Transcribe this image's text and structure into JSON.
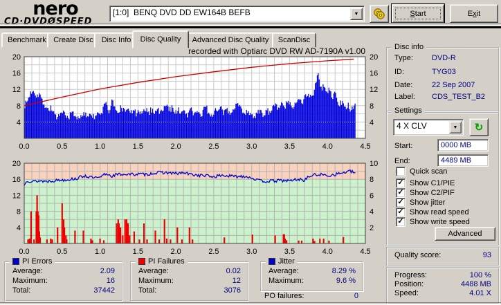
{
  "app": {
    "logo_top": "nero",
    "logo_bottom_left": "CD·DVD",
    "logo_disc": "Ø",
    "logo_bottom_right": "SPEED"
  },
  "toolbar": {
    "drive_select": "[1:0]  BENQ DVD DD EW164B BEFB",
    "eject_icon": "discs-icon",
    "start": {
      "label": "Start",
      "accel": 0
    },
    "exit": {
      "label": "Exit",
      "accel": 1
    }
  },
  "tabs": [
    {
      "label": "Benchmark"
    },
    {
      "label": "Create Disc"
    },
    {
      "label": "Disc Info"
    },
    {
      "label": "Disc Quality",
      "active": true
    },
    {
      "label": "Advanced Disc Quality"
    },
    {
      "label": "ScanDisc"
    }
  ],
  "chart_data": [
    {
      "type": "bar",
      "name": "pi-errors-scan",
      "title": "recorded with Optiarc DVD RW AD-7190A  v1.00",
      "x_range": [
        0,
        4.5
      ],
      "x_ticks": [
        0.0,
        0.5,
        1.0,
        1.5,
        2.0,
        2.5,
        3.0,
        3.5,
        4.0,
        4.5
      ],
      "y_left_ticks": [
        4,
        8,
        12,
        16,
        20
      ],
      "y_right_ticks": [
        4,
        8,
        12,
        16,
        20
      ],
      "ylim": [
        0,
        20
      ],
      "grid": {
        "x_step": 0.1,
        "y_step": 2,
        "color": "#c9c9c9"
      },
      "bar_color": "#0000dd",
      "pie_base_level": 3.5,
      "pie_end_x": 4.37,
      "pie_samples_span": 4.35,
      "pie_samples": [
        8,
        9,
        11,
        12,
        10.5,
        11,
        9,
        8,
        7,
        7.5,
        6,
        5,
        5.5,
        6.5,
        5,
        5.5,
        6.5,
        5,
        5.5,
        5,
        6,
        5.5,
        6.5,
        5,
        6,
        5.5,
        7,
        9.5,
        6,
        9.5,
        7,
        6,
        8,
        6.5,
        7.5,
        6,
        7,
        6,
        6.5,
        5.5,
        7.5,
        6,
        7,
        6.5,
        7.5,
        6,
        7.5,
        8,
        7,
        7.5,
        6.5,
        7,
        6,
        6.5,
        5.5,
        8,
        6,
        6.5,
        5.5,
        6,
        8.5,
        6,
        5.5,
        7,
        6.5,
        7.5,
        6,
        7,
        6,
        7.5,
        8.5,
        8,
        7,
        6.5,
        6,
        6.5,
        5.5,
        6,
        6.5,
        5.5,
        7,
        6.5,
        7.5,
        8,
        7,
        8.5,
        7.5,
        9,
        8,
        7,
        9.5,
        10,
        9,
        10.5,
        11,
        10,
        12,
        16,
        12,
        13,
        11,
        12,
        10,
        11.5,
        8,
        9,
        7,
        8.5,
        6.5,
        8
      ],
      "write_speed_line": {
        "color": "#cc0000",
        "points": [
          [
            0,
            8
          ],
          [
            0.5,
            10.1
          ],
          [
            1.0,
            12.1
          ],
          [
            1.5,
            13.7
          ],
          [
            2.0,
            15.1
          ],
          [
            2.5,
            16.3
          ],
          [
            3.0,
            17.4
          ],
          [
            3.5,
            18.3
          ],
          [
            4.0,
            19.0
          ],
          [
            4.35,
            19.4
          ]
        ]
      }
    },
    {
      "type": "bar",
      "name": "pi-failures-and-jitter",
      "x_range": [
        0,
        4.5
      ],
      "x_ticks": [
        0.0,
        0.5,
        1.0,
        1.5,
        2.0,
        2.5,
        3.0,
        3.5,
        4.0,
        4.5
      ],
      "y_left_ticks": [
        4,
        8,
        12,
        16,
        20
      ],
      "y_right_ticks": [
        2,
        4,
        6,
        8,
        10
      ],
      "ylim_left": [
        0,
        20
      ],
      "ylim_right": [
        0,
        10
      ],
      "grid": {
        "x_step": 0.1,
        "y_step": 2,
        "color": "#b4b4b4"
      },
      "zones": [
        {
          "from": 16,
          "to": 20,
          "color": "#f8d2bc"
        },
        {
          "from": 0,
          "to": 16,
          "color": "#ccf2cc"
        }
      ],
      "pif_color": "#ee0000",
      "pif_bars": [
        [
          0.05,
          1
        ],
        [
          0.07,
          1.2
        ],
        [
          0.09,
          8
        ],
        [
          0.13,
          1
        ],
        [
          0.16,
          8
        ],
        [
          0.17,
          12
        ],
        [
          0.18,
          8
        ],
        [
          0.19,
          7
        ],
        [
          0.2,
          3
        ],
        [
          0.21,
          1.5
        ],
        [
          0.3,
          1
        ],
        [
          0.35,
          1.2
        ],
        [
          0.37,
          1
        ],
        [
          0.44,
          4
        ],
        [
          0.5,
          10
        ],
        [
          0.52,
          6
        ],
        [
          0.53,
          4
        ],
        [
          0.55,
          2
        ],
        [
          0.56,
          1
        ],
        [
          0.67,
          3.2
        ],
        [
          0.78,
          3.2
        ],
        [
          0.88,
          1.2
        ],
        [
          0.9,
          0.8
        ],
        [
          1.0,
          1.2
        ],
        [
          1.05,
          0.8
        ],
        [
          1.22,
          5
        ],
        [
          1.24,
          6
        ],
        [
          1.25,
          5
        ],
        [
          1.27,
          4
        ],
        [
          1.3,
          2
        ],
        [
          1.33,
          6
        ],
        [
          1.35,
          6
        ],
        [
          1.37,
          5
        ],
        [
          1.39,
          2
        ],
        [
          1.45,
          3
        ],
        [
          1.52,
          1
        ],
        [
          1.58,
          5
        ],
        [
          1.62,
          1
        ],
        [
          1.73,
          3.2
        ],
        [
          1.78,
          1
        ],
        [
          1.85,
          6
        ],
        [
          1.88,
          1.2
        ],
        [
          1.93,
          1
        ],
        [
          2.02,
          4
        ],
        [
          2.08,
          1
        ],
        [
          2.18,
          4
        ],
        [
          2.22,
          1
        ],
        [
          2.64,
          1.5
        ],
        [
          3.01,
          2.2
        ],
        [
          3.31,
          2
        ],
        [
          3.42,
          2.3
        ],
        [
          3.43,
          2.3
        ],
        [
          3.44,
          1.2
        ],
        [
          3.46,
          0.8
        ],
        [
          3.62,
          0.7
        ],
        [
          3.66,
          0.7
        ],
        [
          3.81,
          1.2
        ],
        [
          3.83,
          0.6
        ],
        [
          3.9,
          1.2
        ],
        [
          3.95,
          1.2
        ],
        [
          4.02,
          0.7
        ],
        [
          4.21,
          1.6
        ]
      ],
      "jitter_color": "#0000cc",
      "jitter_points": [
        [
          0,
          7.2
        ],
        [
          0.03,
          7.9
        ],
        [
          0.1,
          7.7
        ],
        [
          0.2,
          7.8
        ],
        [
          0.3,
          7.75
        ],
        [
          0.4,
          7.85
        ],
        [
          0.5,
          7.9
        ],
        [
          0.6,
          8.0
        ],
        [
          0.7,
          8.1
        ],
        [
          0.75,
          8.3
        ],
        [
          0.8,
          8.45
        ],
        [
          0.85,
          8.3
        ],
        [
          0.9,
          8.2
        ],
        [
          1.0,
          8.15
        ],
        [
          1.05,
          8.6
        ],
        [
          1.1,
          8.65
        ],
        [
          1.15,
          8.4
        ],
        [
          1.2,
          8.55
        ],
        [
          1.3,
          8.65
        ],
        [
          1.4,
          8.6
        ],
        [
          1.5,
          8.65
        ],
        [
          1.6,
          8.6
        ],
        [
          1.7,
          8.75
        ],
        [
          1.8,
          8.85
        ],
        [
          1.9,
          8.8
        ],
        [
          2.0,
          8.7
        ],
        [
          2.1,
          8.8
        ],
        [
          2.2,
          8.6
        ],
        [
          2.3,
          8.5
        ],
        [
          2.4,
          8.45
        ],
        [
          2.5,
          8.3
        ],
        [
          2.6,
          8.5
        ],
        [
          2.7,
          8.4
        ],
        [
          2.8,
          8.35
        ],
        [
          2.9,
          8.4
        ],
        [
          3.0,
          8.2
        ],
        [
          3.1,
          7.8
        ],
        [
          3.2,
          7.75
        ],
        [
          3.3,
          7.8
        ],
        [
          3.4,
          7.85
        ],
        [
          3.5,
          7.8
        ],
        [
          3.6,
          8.0
        ],
        [
          3.7,
          7.9
        ],
        [
          3.75,
          8.3
        ],
        [
          3.8,
          8.5
        ],
        [
          3.9,
          8.6
        ],
        [
          4.0,
          8.45
        ],
        [
          4.1,
          8.6
        ],
        [
          4.2,
          8.8
        ],
        [
          4.3,
          9.0
        ],
        [
          4.35,
          8.85
        ]
      ]
    }
  ],
  "disc_info": {
    "title": "Disc info",
    "rows": [
      {
        "label": "Type:",
        "value": "DVD-R"
      },
      {
        "label": "ID:",
        "value": "TYG03"
      },
      {
        "label": "Date:",
        "value": "22 Sep 2007"
      },
      {
        "label": "Label:",
        "value": "CDS_TEST_B2"
      }
    ]
  },
  "settings": {
    "title": "Settings",
    "speed_select": "4 X CLV",
    "refresh_icon": "↻",
    "start_label": "Start:",
    "start_value": "0000 MB",
    "end_label": "End:",
    "end_value": "4489 MB",
    "checkboxes": [
      {
        "label": "Quick scan",
        "checked": false
      },
      {
        "label": "Show C1/PIE",
        "checked": true
      },
      {
        "label": "Show C2/PIF",
        "checked": true
      },
      {
        "label": "Show jitter",
        "checked": true
      },
      {
        "label": "Show read speed",
        "checked": true
      },
      {
        "label": "Show write speed",
        "checked": true
      }
    ],
    "advanced_label": "Advanced"
  },
  "quality": {
    "label": "Quality score:",
    "value": "93"
  },
  "stats": {
    "pi_errors": {
      "title": "PI Errors",
      "color": "#0000cc",
      "rows": [
        {
          "label": "Average:",
          "value": "2.09"
        },
        {
          "label": "Maximum:",
          "value": "16"
        },
        {
          "label": "Total:",
          "value": "37442"
        }
      ]
    },
    "pi_failures": {
      "title": "PI Failures",
      "color": "#ee0000",
      "rows": [
        {
          "label": "Average:",
          "value": "0.02"
        },
        {
          "label": "Maximum:",
          "value": "12"
        },
        {
          "label": "Total:",
          "value": "3076"
        }
      ]
    },
    "jitter": {
      "title": "Jitter",
      "color": "#0000cc",
      "rows": [
        {
          "label": "Average:",
          "value": "8.29 %"
        },
        {
          "label": "Maximum:",
          "value": "9.6 %"
        }
      ]
    },
    "po_failures": {
      "label": "PO failures:",
      "value": "0"
    }
  },
  "progress": {
    "rows": [
      {
        "label": "Progress:",
        "value": "100 %"
      },
      {
        "label": "Position:",
        "value": "4488 MB"
      },
      {
        "label": "Speed:",
        "value": "4.01 X"
      }
    ]
  }
}
